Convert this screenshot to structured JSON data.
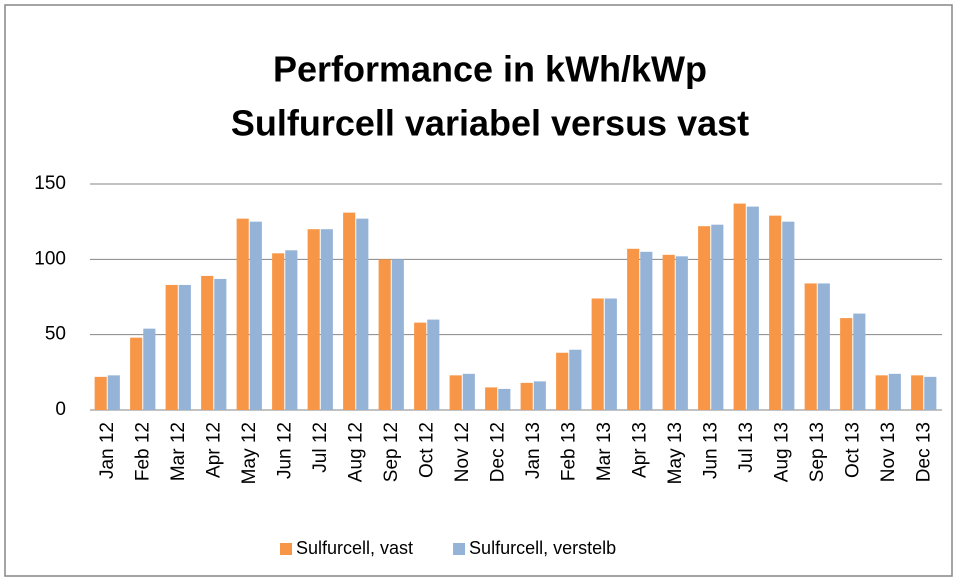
{
  "chart_data": {
    "type": "bar",
    "title": "Performance in kWh/kWp",
    "subtitle": "Sulfurcell variabel versus vast",
    "categories": [
      "Jan 12",
      "Feb 12",
      "Mar 12",
      "Apr 12",
      "May 12",
      "Jun 12",
      "Jul 12",
      "Aug 12",
      "Sep 12",
      "Oct 12",
      "Nov 12",
      "Dec 12",
      "Jan 13",
      "Feb 13",
      "Mar 13",
      "Apr 13",
      "May 13",
      "Jun 13",
      "Jul 13",
      "Aug 13",
      "Sep 13",
      "Oct 13",
      "Nov 13",
      "Dec 13"
    ],
    "series": [
      {
        "name": "Sulfurcell, vast",
        "color": "#f79646",
        "values": [
          22,
          48,
          83,
          89,
          127,
          104,
          120,
          131,
          100,
          58,
          23,
          15,
          18,
          38,
          74,
          107,
          103,
          122,
          137,
          129,
          84,
          61,
          23,
          23
        ]
      },
      {
        "name": "Sulfurcell, verstelb",
        "color": "#95b3d7",
        "values": [
          23,
          54,
          83,
          87,
          125,
          106,
          120,
          127,
          100,
          60,
          24,
          14,
          19,
          40,
          74,
          105,
          102,
          123,
          135,
          125,
          84,
          64,
          24,
          22
        ]
      }
    ],
    "ylim": [
      0,
      150
    ],
    "yticks": [
      0,
      50,
      100,
      150
    ],
    "grid": true,
    "legend": "bottom"
  }
}
